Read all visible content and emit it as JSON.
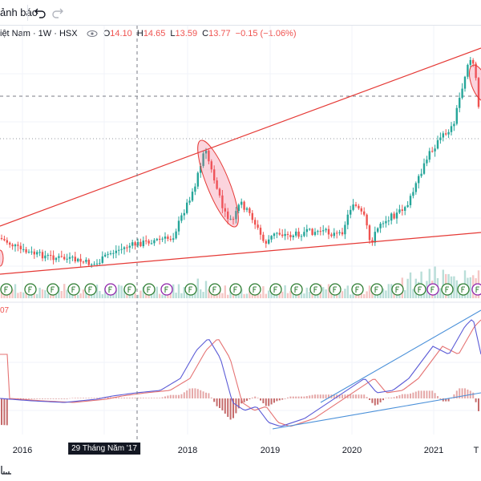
{
  "toolbar": {
    "alerts_label": "ảnh báo",
    "undo_icon": "undo-icon",
    "redo_icon": "redo-icon"
  },
  "legend": {
    "symbol": "iệt Nam · 1W · HSX",
    "open_label": "O",
    "open": "14.10",
    "high_label": "H",
    "high": "14.65",
    "low_label": "L",
    "low": "13.59",
    "close_label": "C",
    "close": "13.77",
    "change": "−0.15 (−1.06%)"
  },
  "macd_value": "07",
  "crosshair_date": "29 Tháng Năm '17",
  "x_axis_labels": [
    "2016",
    "2018",
    "2019",
    "2020",
    "2021",
    "T"
  ],
  "colors": {
    "up": "#26a69a",
    "down": "#ef5350",
    "trendline_red": "#e53935",
    "trendline_blue": "#4a90d9",
    "macd_line": "#5b5bd6",
    "signal_line": "#e57373",
    "dividend_marker": "#2e7d32",
    "split_marker": "#8e24aa"
  }
}
